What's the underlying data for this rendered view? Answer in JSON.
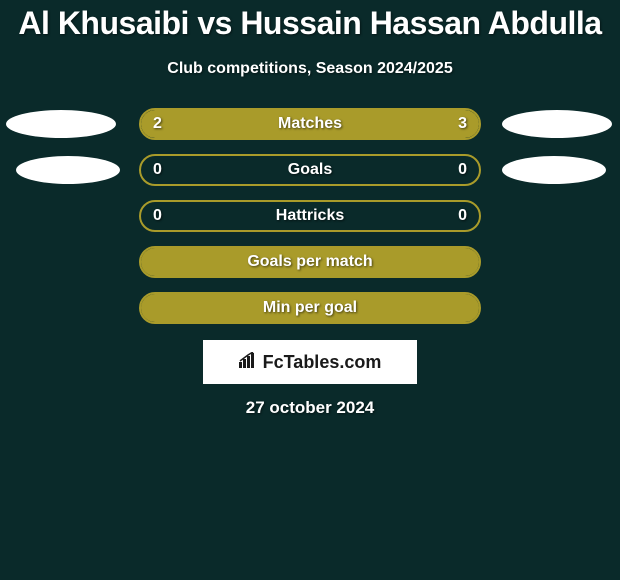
{
  "title": "Al Khusaibi vs Hussain Hassan Abdulla",
  "subtitle": "Club competitions, Season 2024/2025",
  "date": "27 october 2024",
  "logo_text": "FcTables.com",
  "colors": {
    "background": "#0a2a2a",
    "bar_border": "#a99b2a",
    "bar_fill": "#a99b2a",
    "text": "#ffffff",
    "ellipse": "#ffffff",
    "logo_bg": "#ffffff",
    "logo_text": "#1a1a1a"
  },
  "rows": [
    {
      "label": "Matches",
      "left_value": "2",
      "right_value": "3",
      "left_pct": 40,
      "right_pct": 60,
      "show_left_ellipse": true,
      "show_right_ellipse": true,
      "ellipse_size": "large"
    },
    {
      "label": "Goals",
      "left_value": "0",
      "right_value": "0",
      "left_pct": 0,
      "right_pct": 0,
      "show_left_ellipse": true,
      "show_right_ellipse": true,
      "ellipse_size": "small"
    },
    {
      "label": "Hattricks",
      "left_value": "0",
      "right_value": "0",
      "left_pct": 0,
      "right_pct": 0,
      "show_left_ellipse": false,
      "show_right_ellipse": false
    },
    {
      "label": "Goals per match",
      "left_value": "",
      "right_value": "",
      "left_pct": 100,
      "right_pct": 0,
      "full_fill": true,
      "show_left_ellipse": false,
      "show_right_ellipse": false
    },
    {
      "label": "Min per goal",
      "left_value": "",
      "right_value": "",
      "left_pct": 100,
      "right_pct": 0,
      "full_fill": true,
      "show_left_ellipse": false,
      "show_right_ellipse": false
    }
  ]
}
